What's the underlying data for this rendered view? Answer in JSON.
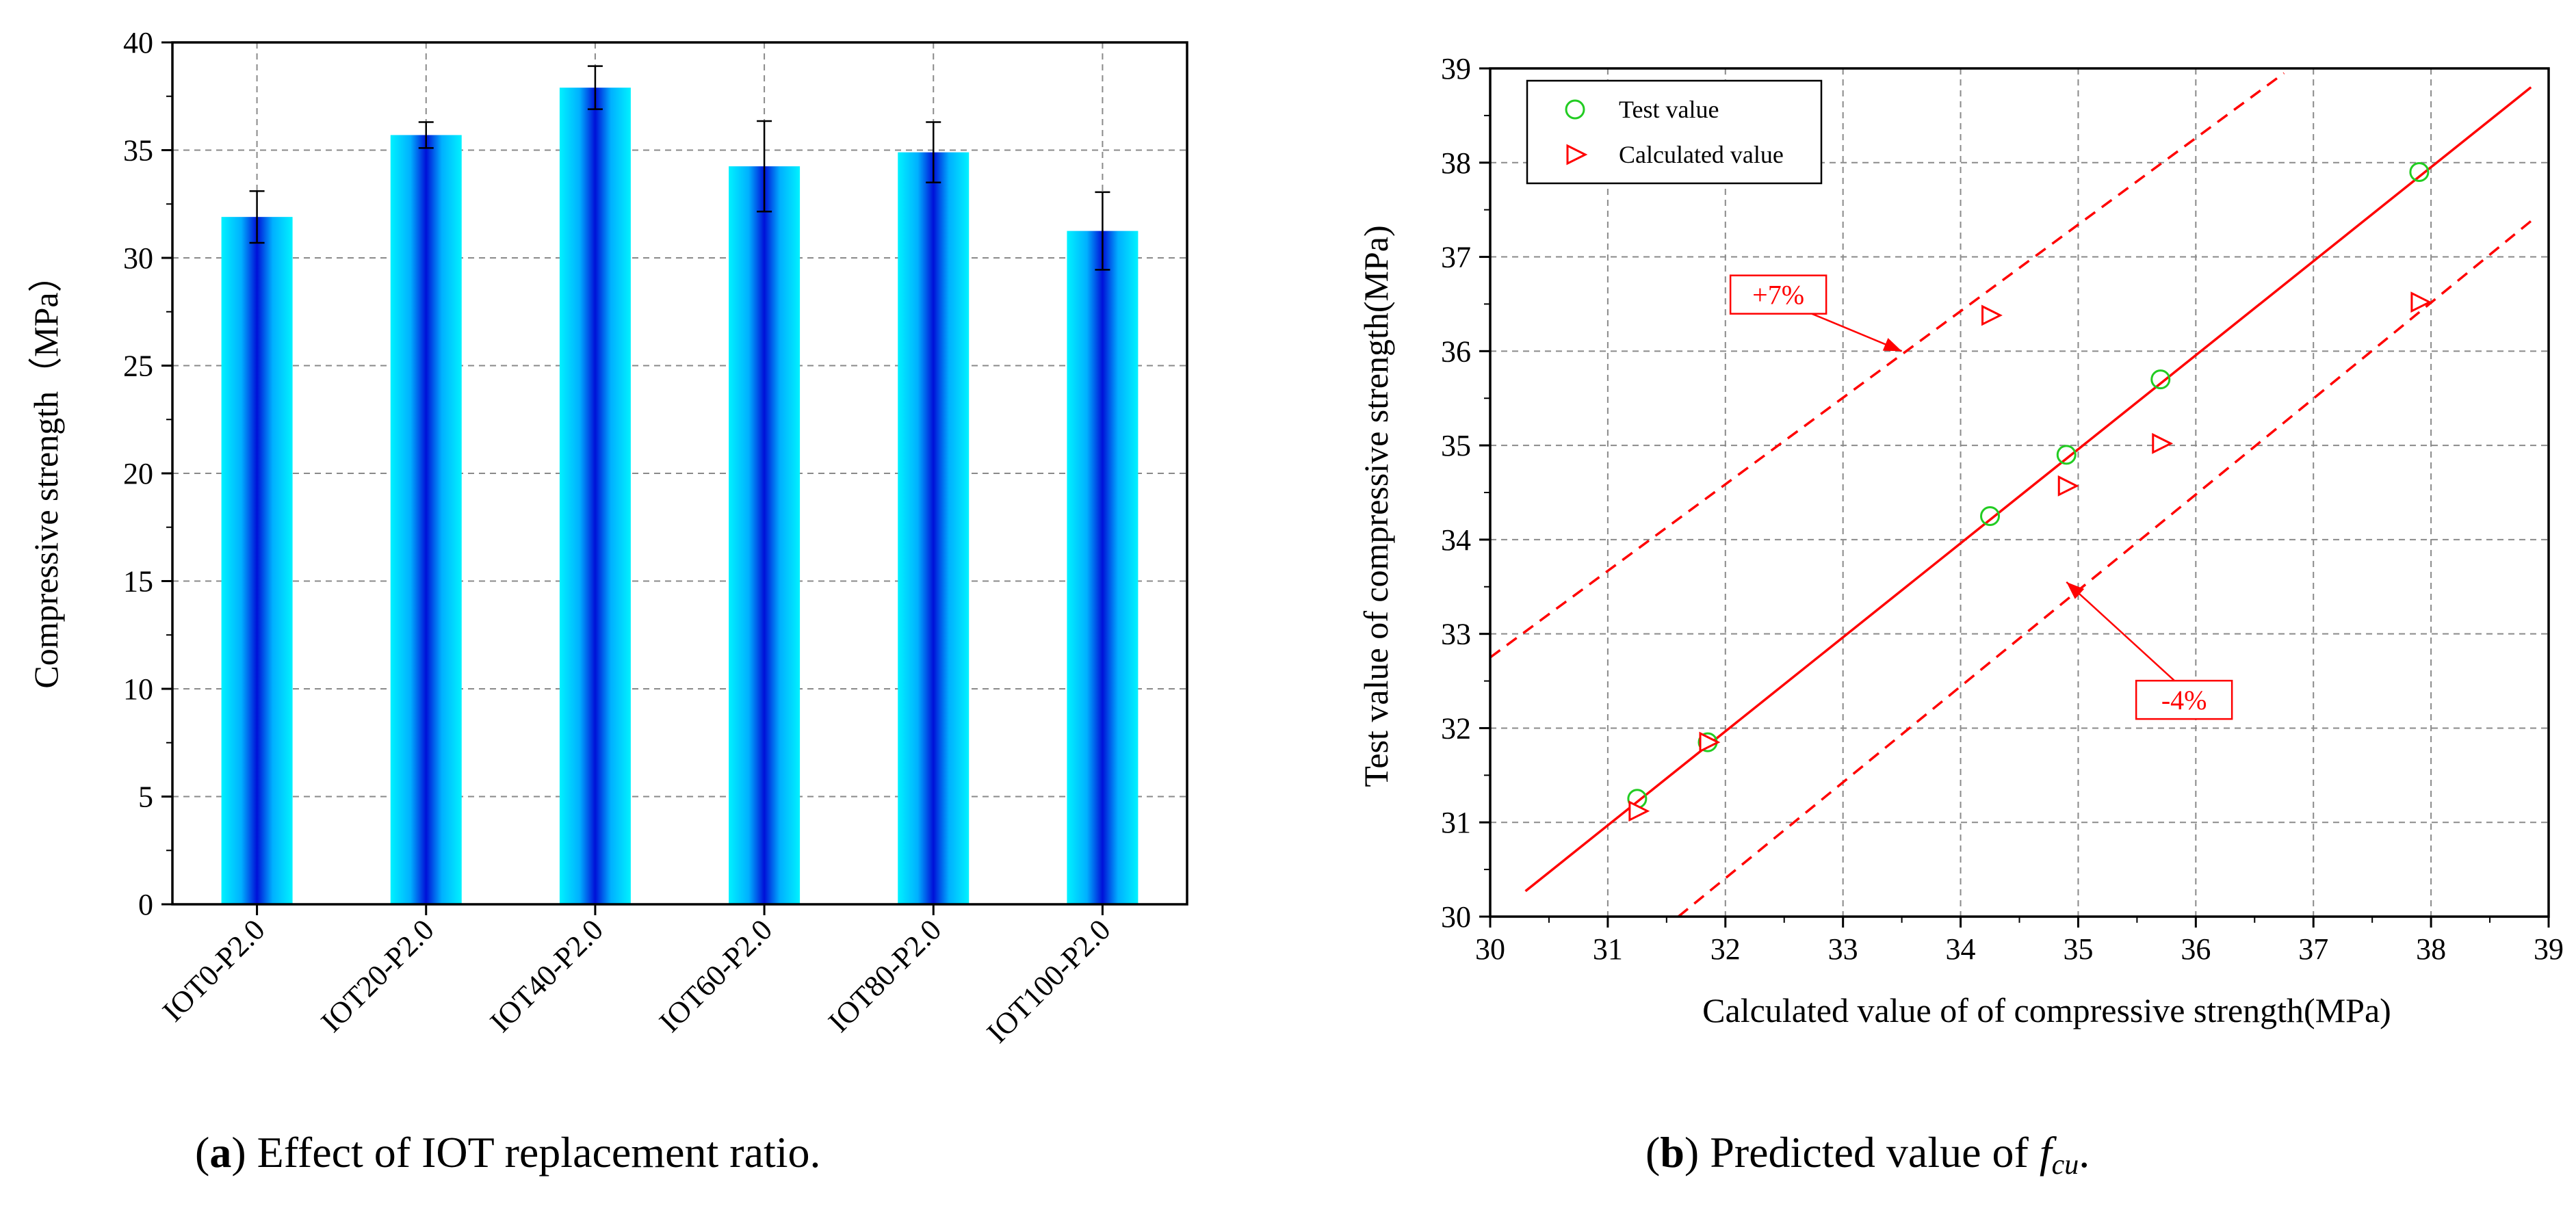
{
  "colors": {
    "bar_edge": "#00f2ff",
    "bar_core": "#0010d8",
    "grid": "#8a8a8a",
    "red": "#ff0000",
    "green": "#22cc22"
  },
  "chart_data": [
    {
      "type": "bar",
      "categories": [
        "IOT0-P2.0",
        "IOT20-P2.0",
        "IOT40-P2.0",
        "IOT60-P2.0",
        "IOT80-P2.0",
        "IOT100-P2.0"
      ],
      "values": [
        31.9,
        35.7,
        37.9,
        34.25,
        34.9,
        31.25
      ],
      "errors": [
        1.2,
        0.6,
        1.0,
        2.1,
        1.4,
        1.8
      ],
      "ylabel": "Compressive strength（MPa）",
      "ylim": [
        0,
        40
      ],
      "yticks": [
        "0",
        "5",
        "10",
        "15",
        "20",
        "25",
        "30",
        "35",
        "40"
      ],
      "grid": true,
      "caption": {
        "letter": "a",
        "text": " Effect of IOT replacement ratio."
      }
    },
    {
      "type": "scatter",
      "xlabel": "Calculated value of of compressive strength(MPa)",
      "ylabel": "Test value of compressive strength(MPa)",
      "xlim": [
        30,
        39
      ],
      "ylim": [
        30,
        39
      ],
      "xticks": [
        "30",
        "31",
        "32",
        "33",
        "34",
        "35",
        "36",
        "37",
        "38",
        "39"
      ],
      "yticks": [
        "30",
        "31",
        "32",
        "33",
        "34",
        "35",
        "36",
        "37",
        "38",
        "39"
      ],
      "grid": true,
      "legend_position": "top-left",
      "series": [
        {
          "name": "Test value",
          "marker": "circle",
          "x": [
            31.25,
            31.85,
            34.25,
            34.9,
            35.7,
            37.9
          ],
          "y": [
            31.25,
            31.85,
            34.25,
            34.9,
            35.7,
            37.9
          ]
        },
        {
          "name": "Calculated value",
          "marker": "triangle",
          "x": [
            31.25,
            31.85,
            34.25,
            34.9,
            35.7,
            37.9
          ],
          "y": [
            31.12,
            31.85,
            36.38,
            34.57,
            35.02,
            36.52
          ]
        }
      ],
      "lines": [
        {
          "name": "y = x",
          "style": "solid",
          "x": [
            30.3,
            38.85
          ],
          "y": [
            30.27,
            38.8
          ]
        },
        {
          "name": "+7%",
          "style": "dashed",
          "x": [
            30,
            36.75
          ],
          "y": [
            32.75,
            38.95
          ]
        },
        {
          "name": "-4%",
          "style": "dashed",
          "x": [
            31.6,
            38.85
          ],
          "y": [
            30,
            37.38
          ]
        }
      ],
      "annotations": [
        {
          "text": "+7%",
          "box_at": [
            32.45,
            36.6
          ],
          "arrow_to": [
            33.5,
            36.0
          ]
        },
        {
          "text": "-4%",
          "box_at": [
            35.9,
            32.3
          ],
          "arrow_to": [
            34.9,
            33.55
          ]
        }
      ],
      "caption": {
        "letter": "b",
        "text": " Predicted value of ",
        "symbol": "f",
        "subscript": "cu",
        "end": "."
      }
    }
  ]
}
